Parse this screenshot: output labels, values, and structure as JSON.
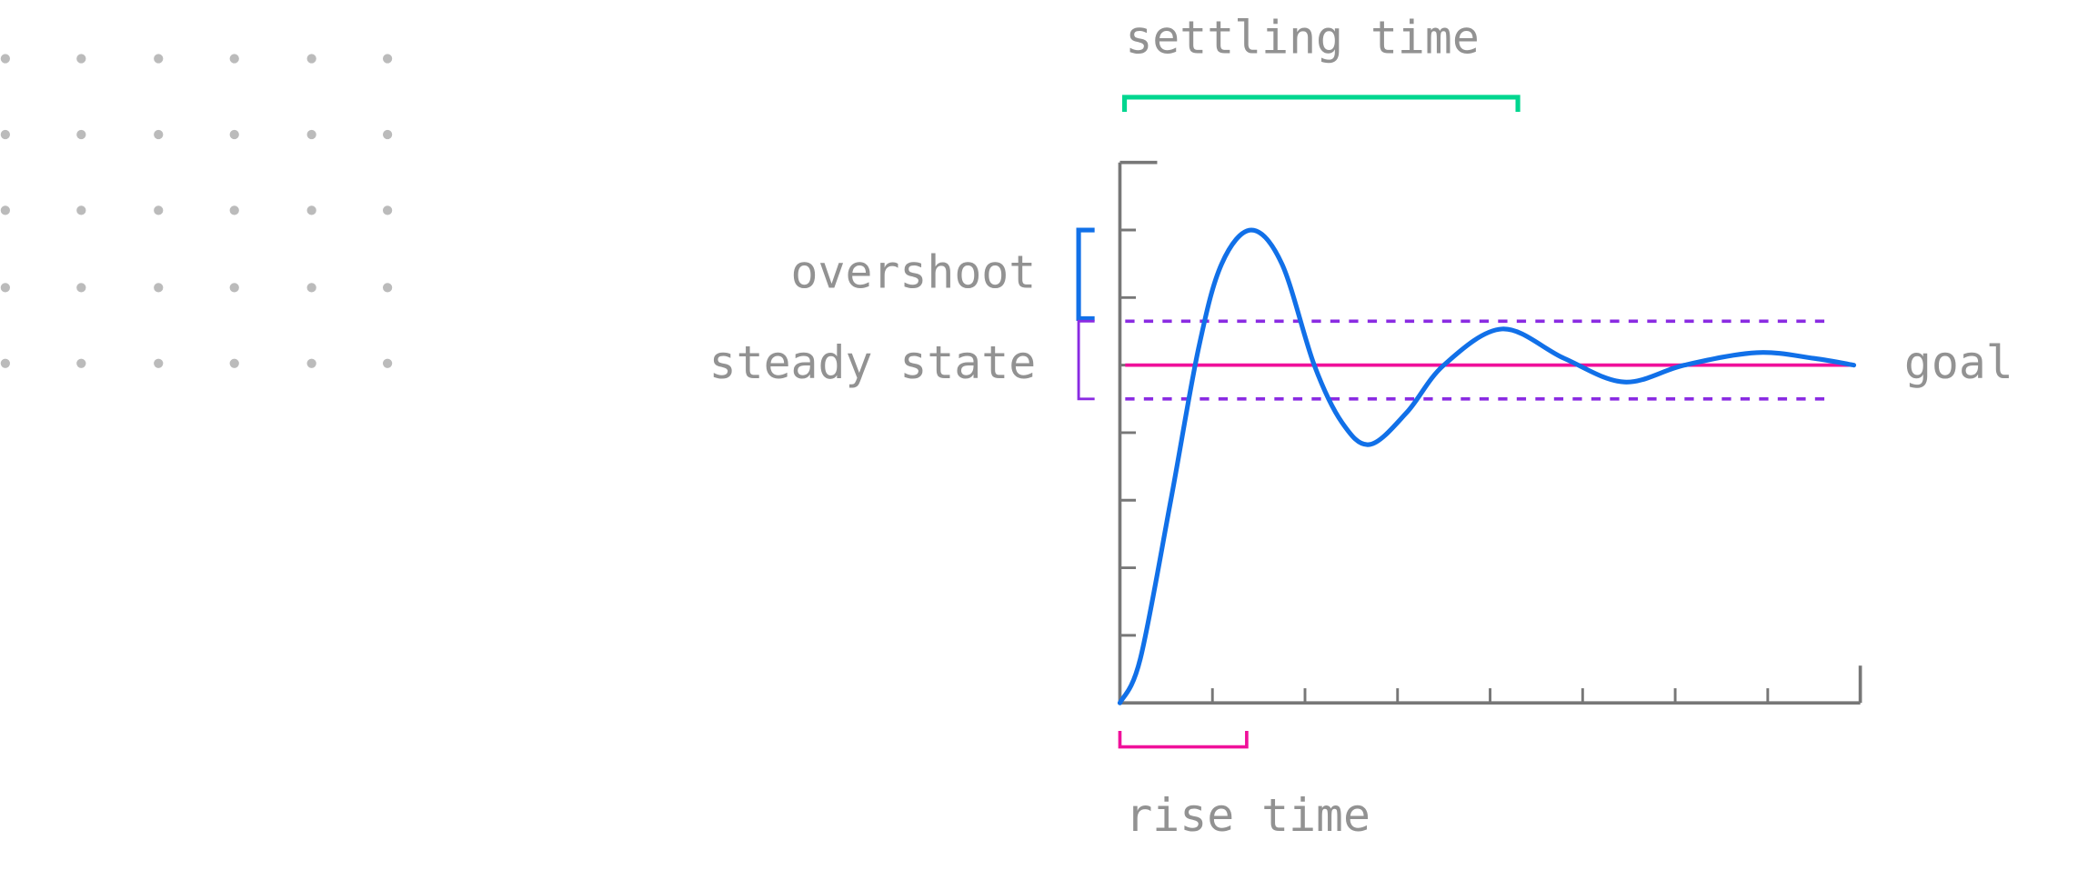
{
  "labels": {
    "settling_time": "settling time",
    "overshoot": "overshoot",
    "steady_state": "steady state",
    "goal": "goal",
    "rise_time": "rise time"
  },
  "colors": {
    "axis": "#777777",
    "response": "#1170e8",
    "goal": "#f0109a",
    "tolerance": "#8a2be2",
    "settling": "#00d68f",
    "rise": "#f0109a",
    "overshoot": "#1170e8",
    "text": "#929292",
    "dots": "#bbbbbb"
  },
  "chart_data": {
    "type": "line",
    "title": "",
    "xlabel": "",
    "ylabel": "",
    "xlim": [
      0,
      8
    ],
    "ylim": [
      0,
      1.6
    ],
    "x_ticks": [
      1,
      2,
      3,
      4,
      5,
      6,
      7
    ],
    "y_ticks": [
      0.2,
      0.4,
      0.6,
      0.8,
      1.0,
      1.2,
      1.4
    ],
    "goal": 1.0,
    "tolerance_band": [
      0.9,
      1.13
    ],
    "rise_time": [
      0,
      1.37
    ],
    "settling_time": [
      0.05,
      4.3
    ],
    "overshoot": [
      1.13,
      1.4
    ],
    "steady_state": [
      0.9,
      1.13
    ],
    "series": [
      {
        "name": "response",
        "x": [
          0,
          0.22,
          0.55,
          0.85,
          1.1,
          1.42,
          1.75,
          2.1,
          2.4,
          2.7,
          3.1,
          3.5,
          4.13,
          4.8,
          5.45,
          6.1,
          6.88,
          7.5,
          7.93
        ],
        "y": [
          0,
          0.13,
          0.6,
          1.05,
          1.3,
          1.4,
          1.3,
          1.0,
          0.83,
          0.765,
          0.86,
          1.0,
          1.107,
          1.02,
          0.95,
          1.0,
          1.037,
          1.02,
          1.0
        ]
      }
    ]
  }
}
